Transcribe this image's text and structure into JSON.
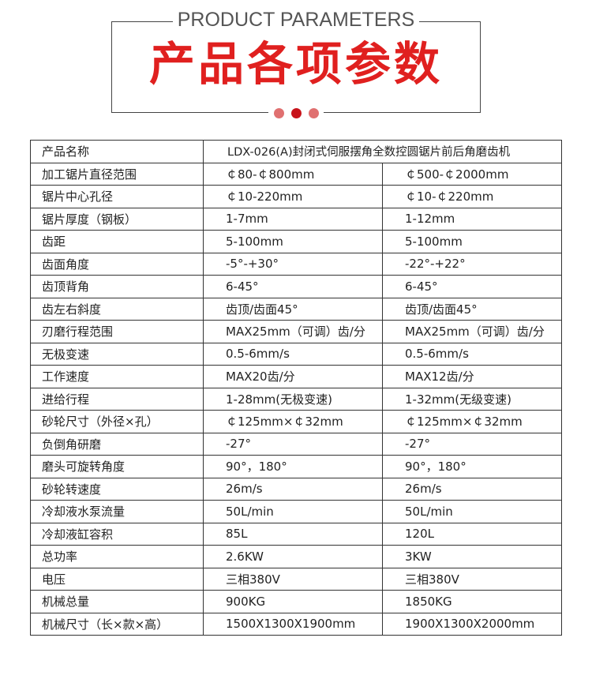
{
  "header": {
    "title_en": "PRODUCT PARAMETERS",
    "title_cn": "产品各项参数"
  },
  "colors": {
    "accent": "#e0201f",
    "dot_dark": "#c8131a",
    "dot_light": "#e07070"
  },
  "table": {
    "name_label": "产品名称",
    "name_value": "LDX-026(A)封闭式伺服摆角全数控圆锯片前后角磨齿机",
    "rows": [
      [
        "加工锯片直径范围",
        "￠80-￠800mm",
        "￠500-￠2000mm"
      ],
      [
        "锯片中心孔径",
        "￠10-220mm",
        "￠10-￠220mm"
      ],
      [
        "锯片厚度（钢板）",
        "1-7mm",
        "1-12mm"
      ],
      [
        "齿距",
        "5-100mm",
        "5-100mm"
      ],
      [
        "齿面角度",
        "-5°-+30°",
        "-22°-+22°"
      ],
      [
        "齿顶背角",
        "6-45°",
        "6-45°"
      ],
      [
        "齿左右斜度",
        "齿顶/齿面45°",
        "齿顶/齿面45°"
      ],
      [
        "刃磨行程范围",
        "MAX25mm（可调）齿/分",
        "MAX25mm（可调）齿/分"
      ],
      [
        "无极变速",
        "0.5-6mm/s",
        "0.5-6mm/s"
      ],
      [
        "工作速度",
        "MAX20齿/分",
        "MAX12齿/分"
      ],
      [
        "进给行程",
        "1-28mm(无极变速)",
        "1-32mm(无级变速)"
      ],
      [
        "砂轮尺寸（外径×孔）",
        "￠125mm×￠32mm",
        "￠125mm×￠32mm"
      ],
      [
        "负倒角研磨",
        "-27°",
        "-27°"
      ],
      [
        "磨头可旋转角度",
        "90°，180°",
        "90°，180°"
      ],
      [
        "砂轮转速度",
        "26m/s",
        "26m/s"
      ],
      [
        "冷却液水泵流量",
        "50L/min",
        "50L/min"
      ],
      [
        "冷却液缸容积",
        "85L",
        "120L"
      ],
      [
        "总功率",
        "2.6KW",
        "3KW"
      ],
      [
        "电压",
        "三相380V",
        "三相380V"
      ],
      [
        "机械总量",
        "900KG",
        "1850KG"
      ],
      [
        "机械尺寸（长×款×高）",
        "1500X1300X1900mm",
        "1900X1300X2000mm"
      ]
    ]
  }
}
